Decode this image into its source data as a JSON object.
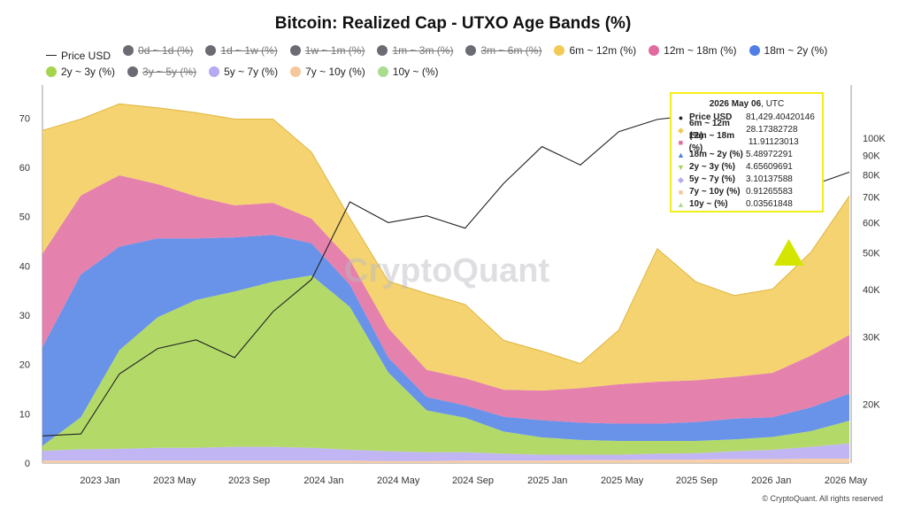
{
  "title": "Bitcoin: Realized Cap - UTXO Age Bands (%)",
  "legend": [
    {
      "label": "Price USD",
      "color": "#222222",
      "kind": "line",
      "active": true
    },
    {
      "label": "0d ~ 1d (%)",
      "color": "#6b6b73",
      "kind": "dot",
      "active": false
    },
    {
      "label": "1d ~ 1w (%)",
      "color": "#6b6b73",
      "kind": "dot",
      "active": false
    },
    {
      "label": "1w ~ 1m (%)",
      "color": "#6b6b73",
      "kind": "dot",
      "active": false
    },
    {
      "label": "1m ~ 3m (%)",
      "color": "#6b6b73",
      "kind": "dot",
      "active": false
    },
    {
      "label": "3m ~ 6m (%)",
      "color": "#6b6b73",
      "kind": "dot",
      "active": false
    },
    {
      "label": "6m ~ 12m (%)",
      "color": "#f2cb57",
      "kind": "dot",
      "active": true
    },
    {
      "label": "12m ~ 18m (%)",
      "color": "#e16b9f",
      "kind": "dot",
      "active": true
    },
    {
      "label": "18m ~ 2y (%)",
      "color": "#4f7fe5",
      "kind": "dot",
      "active": true
    },
    {
      "label": "2y ~ 3y (%)",
      "color": "#a6d44f",
      "kind": "dot",
      "active": true
    },
    {
      "label": "3y ~ 5y (%)",
      "color": "#6b6b73",
      "kind": "dot",
      "active": false
    },
    {
      "label": "5y ~ 7y (%)",
      "color": "#b7a8f2",
      "kind": "dot",
      "active": true
    },
    {
      "label": "7y ~ 10y (%)",
      "color": "#f6c79a",
      "kind": "dot",
      "active": true
    },
    {
      "label": "10y ~ (%)",
      "color": "#a9dc8f",
      "kind": "dot",
      "active": true
    }
  ],
  "watermark": "CryptoQuant",
  "copyright": "© CryptoQuant. All rights reserved",
  "tooltip": {
    "date": "2026 May 06",
    "tz": ", UTC",
    "rows": [
      {
        "symbol": "●",
        "color": "#222222",
        "label": "Price USD",
        "value": "81,429.40420146"
      },
      {
        "symbol": "◆",
        "color": "#f2cb57",
        "label": "6m ~ 12m (%)",
        "value": "28.17382728"
      },
      {
        "symbol": "■",
        "color": "#e16b9f",
        "label": "12m ~ 18m (%)",
        "value": "11.91123013"
      },
      {
        "symbol": "▲",
        "color": "#4f7fe5",
        "label": "18m ~ 2y (%)",
        "value": "5.48972291"
      },
      {
        "symbol": "▼",
        "color": "#a6d44f",
        "label": "2y ~ 3y (%)",
        "value": "4.65609691"
      },
      {
        "symbol": "◆",
        "color": "#b7a8f2",
        "label": "5y ~ 7y (%)",
        "value": "3.10137588"
      },
      {
        "symbol": "■",
        "color": "#f6c79a",
        "label": "7y ~ 10y (%)",
        "value": "0.91265583"
      },
      {
        "symbol": "▲",
        "color": "#a9dc8f",
        "label": "10y ~ (%)",
        "value": "0.03561848"
      }
    ]
  },
  "chart_data": {
    "type": "area",
    "title": "Bitcoin: Realized Cap - UTXO Age Bands (%)",
    "x_ticks": [
      "2023 Jan",
      "2023 May",
      "2023 Sep",
      "2024 Jan",
      "2024 May",
      "2024 Sep",
      "2025 Jan",
      "2025 May",
      "2025 Sep",
      "2026 Jan",
      "2026 May"
    ],
    "y_left": {
      "label": "",
      "ticks": [
        0,
        10,
        20,
        30,
        40,
        50,
        60,
        70
      ],
      "range": [
        0,
        76
      ]
    },
    "y_right": {
      "label": "",
      "scale": "log",
      "ticks": [
        20000,
        30000,
        40000,
        50000,
        60000,
        70000,
        80000,
        90000,
        100000
      ],
      "tick_labels": [
        "20K",
        "30K",
        "40K",
        "50K",
        "60K",
        "70K",
        "80K",
        "90K",
        "100K"
      ],
      "range": [
        14000,
        135000
      ]
    },
    "x": [
      "2022 Nov",
      "2023 Jan",
      "2023 Mar",
      "2023 May",
      "2023 Jul",
      "2023 Sep",
      "2023 Nov",
      "2024 Jan",
      "2024 Mar",
      "2024 May",
      "2024 Jul",
      "2024 Sep",
      "2024 Nov",
      "2025 Jan",
      "2025 Mar",
      "2025 May",
      "2025 Jul",
      "2025 Sep",
      "2025 Nov",
      "2026 Jan",
      "2026 Mar",
      "2026 May"
    ],
    "series": [
      {
        "name": "7y ~ 10y (%)",
        "color": "#f6c79a",
        "values": [
          0.5,
          0.5,
          0.5,
          0.5,
          0.5,
          0.5,
          0.5,
          0.5,
          0.5,
          0.4,
          0.4,
          0.5,
          0.5,
          0.5,
          0.6,
          0.6,
          0.7,
          0.7,
          0.8,
          0.8,
          0.9,
          0.9
        ]
      },
      {
        "name": "5y ~ 7y (%)",
        "color": "#b7a8f2",
        "values": [
          2.0,
          2.3,
          2.4,
          2.6,
          2.6,
          2.8,
          2.8,
          2.6,
          2.2,
          2.0,
          1.8,
          1.7,
          1.4,
          1.2,
          1.1,
          1.1,
          1.2,
          1.3,
          1.6,
          1.9,
          2.4,
          3.1
        ]
      },
      {
        "name": "2y ~ 3y (%)",
        "color": "#a6d44f",
        "values": [
          1.0,
          6.5,
          20.0,
          26.5,
          30.0,
          31.5,
          33.5,
          35.0,
          29.0,
          16.0,
          8.5,
          7.0,
          4.5,
          3.5,
          3.0,
          2.8,
          2.6,
          2.5,
          2.4,
          2.6,
          3.2,
          4.6
        ]
      },
      {
        "name": "18m ~ 2y (%)",
        "color": "#4f7fe5",
        "values": [
          20.0,
          29.0,
          21.0,
          16.0,
          12.5,
          11.0,
          9.5,
          6.5,
          4.5,
          3.0,
          2.7,
          2.5,
          3.0,
          3.5,
          3.5,
          3.5,
          3.5,
          3.8,
          4.2,
          4.0,
          4.8,
          5.5
        ]
      },
      {
        "name": "12m ~ 18m (%)",
        "color": "#e16b9f",
        "values": [
          19.0,
          16.0,
          14.5,
          11.0,
          8.5,
          6.5,
          6.5,
          5.0,
          5.0,
          6.0,
          5.5,
          5.5,
          5.5,
          6.0,
          7.0,
          8.0,
          8.5,
          8.5,
          8.5,
          9.0,
          10.5,
          11.9
        ]
      },
      {
        "name": "6m ~ 12m (%)",
        "color": "#f2cb57",
        "values": [
          25.0,
          15.5,
          14.5,
          15.5,
          17.0,
          17.5,
          17.0,
          13.5,
          8.5,
          9.5,
          15.5,
          15.0,
          10.0,
          8.0,
          5.0,
          11.0,
          27.0,
          20.0,
          16.5,
          17.0,
          21.0,
          28.2
        ]
      },
      {
        "name": "Price USD",
        "color": "#222222",
        "axis": "right",
        "values": [
          16500,
          16700,
          24000,
          28000,
          29500,
          26500,
          35000,
          42500,
          68000,
          60000,
          62500,
          58000,
          76000,
          95000,
          85000,
          104000,
          112000,
          115000,
          100000,
          88000,
          75000,
          81429
        ]
      }
    ],
    "markers": [
      {
        "type": "triangle",
        "color": "#d4e600",
        "x": "2026 Mar"
      }
    ]
  }
}
